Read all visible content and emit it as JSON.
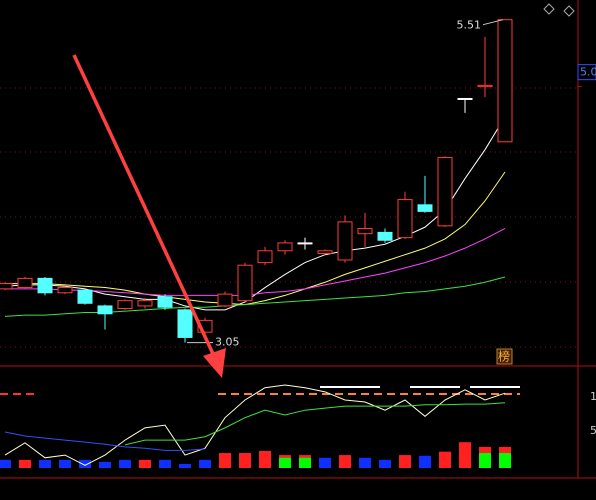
{
  "chart_data": [
    {
      "type": "candlestick",
      "ylim": [
        2.88,
        5.66
      ],
      "yticks": [
        {
          "value": 5.0,
          "label": "5.0"
        }
      ],
      "open": [
        3.46,
        3.47,
        3.54,
        3.43,
        3.45,
        3.33,
        3.31,
        3.33,
        3.4,
        3.3,
        3.13,
        3.33,
        3.37,
        3.66,
        3.75,
        3.81,
        3.73,
        3.68,
        3.88,
        3.89,
        3.85,
        4.1,
        3.94,
        4.91,
        5.0,
        4.58
      ],
      "high": [
        3.51,
        3.55,
        3.55,
        3.48,
        3.46,
        3.34,
        3.38,
        3.39,
        3.42,
        3.31,
        3.24,
        3.44,
        3.66,
        3.78,
        3.83,
        3.85,
        3.76,
        4.02,
        4.04,
        3.92,
        4.2,
        4.32,
        4.47,
        4.91,
        5.38,
        5.51
      ],
      "low": [
        3.45,
        3.46,
        3.41,
        3.42,
        3.34,
        3.15,
        3.3,
        3.31,
        3.3,
        3.05,
        3.11,
        3.32,
        3.36,
        3.64,
        3.72,
        3.76,
        3.72,
        3.66,
        3.78,
        3.81,
        3.84,
        4.04,
        3.93,
        4.8,
        4.92,
        4.58
      ],
      "close": [
        3.5,
        3.54,
        3.43,
        3.47,
        3.35,
        3.27,
        3.37,
        3.37,
        3.32,
        3.09,
        3.22,
        3.42,
        3.64,
        3.75,
        3.81,
        3.81,
        3.75,
        3.97,
        3.92,
        3.83,
        4.14,
        4.05,
        4.46,
        4.91,
        5.01,
        5.51
      ],
      "up_color": "#ff3c3c",
      "down_color": "#54ffff",
      "flat_color": "#ffffff",
      "lines": [
        {
          "color": "#ffffff",
          "values": [
            3.48,
            3.49,
            3.49,
            3.48,
            3.46,
            3.42,
            3.4,
            3.38,
            3.38,
            3.33,
            3.3,
            3.3,
            3.36,
            3.47,
            3.57,
            3.66,
            3.72,
            3.75,
            3.77,
            3.8,
            3.86,
            3.93,
            4.06,
            4.3,
            4.52,
            4.77
          ]
        },
        {
          "color": "#ffff66",
          "values": [
            3.5,
            3.5,
            3.5,
            3.49,
            3.48,
            3.47,
            3.45,
            3.42,
            3.4,
            3.38,
            3.36,
            3.35,
            3.34,
            3.37,
            3.41,
            3.46,
            3.51,
            3.57,
            3.62,
            3.67,
            3.72,
            3.77,
            3.84,
            3.95,
            4.13,
            4.35
          ]
        },
        {
          "color": "#ff40ff",
          "values": [
            3.46,
            3.46,
            3.46,
            3.45,
            3.45,
            3.44,
            3.43,
            3.42,
            3.41,
            3.41,
            3.41,
            3.41,
            3.41,
            3.43,
            3.44,
            3.46,
            3.49,
            3.52,
            3.55,
            3.58,
            3.62,
            3.66,
            3.71,
            3.77,
            3.84,
            3.92
          ]
        },
        {
          "color": "#40e040",
          "values": [
            3.25,
            3.26,
            3.26,
            3.27,
            3.28,
            3.28,
            3.29,
            3.3,
            3.31,
            3.32,
            3.32,
            3.33,
            3.34,
            3.35,
            3.36,
            3.37,
            3.38,
            3.39,
            3.4,
            3.41,
            3.43,
            3.44,
            3.46,
            3.48,
            3.51,
            3.55
          ]
        }
      ],
      "high_label": "5.51",
      "low_label": "3.05",
      "badge": "榜"
    },
    {
      "type": "bar",
      "ylim": [
        0,
        150
      ],
      "values": [
        12,
        12,
        12,
        12,
        12,
        9,
        12,
        12,
        12,
        6,
        12,
        22,
        22,
        25,
        19,
        19,
        15,
        19,
        15,
        12,
        19,
        18,
        24,
        38,
        31,
        31
      ],
      "colors": [
        "#1030ff",
        "#ff2020",
        "#1030ff",
        "#1030ff",
        "#1030ff",
        "#1030ff",
        "#1030ff",
        "#ff2020",
        "#1030ff",
        "#1030ff",
        "#1030ff",
        "#ff2020",
        "#ff2020",
        "#ff2020",
        "#ff2020",
        "#ff2020",
        "#1030ff",
        "#ff2020",
        "#1030ff",
        "#1030ff",
        "#ff2020",
        "#1030ff",
        "#ff2020",
        "#ff2020",
        "#ff2020",
        "#ff2020"
      ],
      "overlay": {
        "color": "#00ff00",
        "values": [
          null,
          null,
          null,
          null,
          null,
          null,
          null,
          null,
          null,
          null,
          null,
          null,
          null,
          null,
          15,
          15,
          null,
          null,
          null,
          null,
          null,
          null,
          null,
          null,
          22,
          22
        ]
      },
      "lines": [
        {
          "color": "#ffffcc",
          "values": [
            19,
            37,
            15,
            19,
            4,
            19,
            41,
            59,
            63,
            19,
            29,
            74,
            100,
            118,
            122,
            118,
            112,
            100,
            97,
            85,
            100,
            76,
            100,
            115,
            100,
            110
          ]
        },
        {
          "color": "#3050ff",
          "values": [
            53,
            47,
            44,
            41,
            38,
            35,
            31,
            29,
            26,
            26,
            28,
            null,
            null,
            null,
            null,
            null,
            null,
            null,
            null,
            null,
            null,
            null,
            null,
            null,
            null,
            null
          ]
        },
        {
          "color": "#40e040",
          "values": [
            null,
            null,
            null,
            null,
            null,
            null,
            34,
            41,
            41,
            41,
            46,
            59,
            74,
            85,
            78,
            85,
            88,
            91,
            91,
            91,
            91,
            93,
            93,
            94,
            94,
            96
          ]
        }
      ],
      "axis_labels": [
        "1",
        "5"
      ]
    }
  ]
}
